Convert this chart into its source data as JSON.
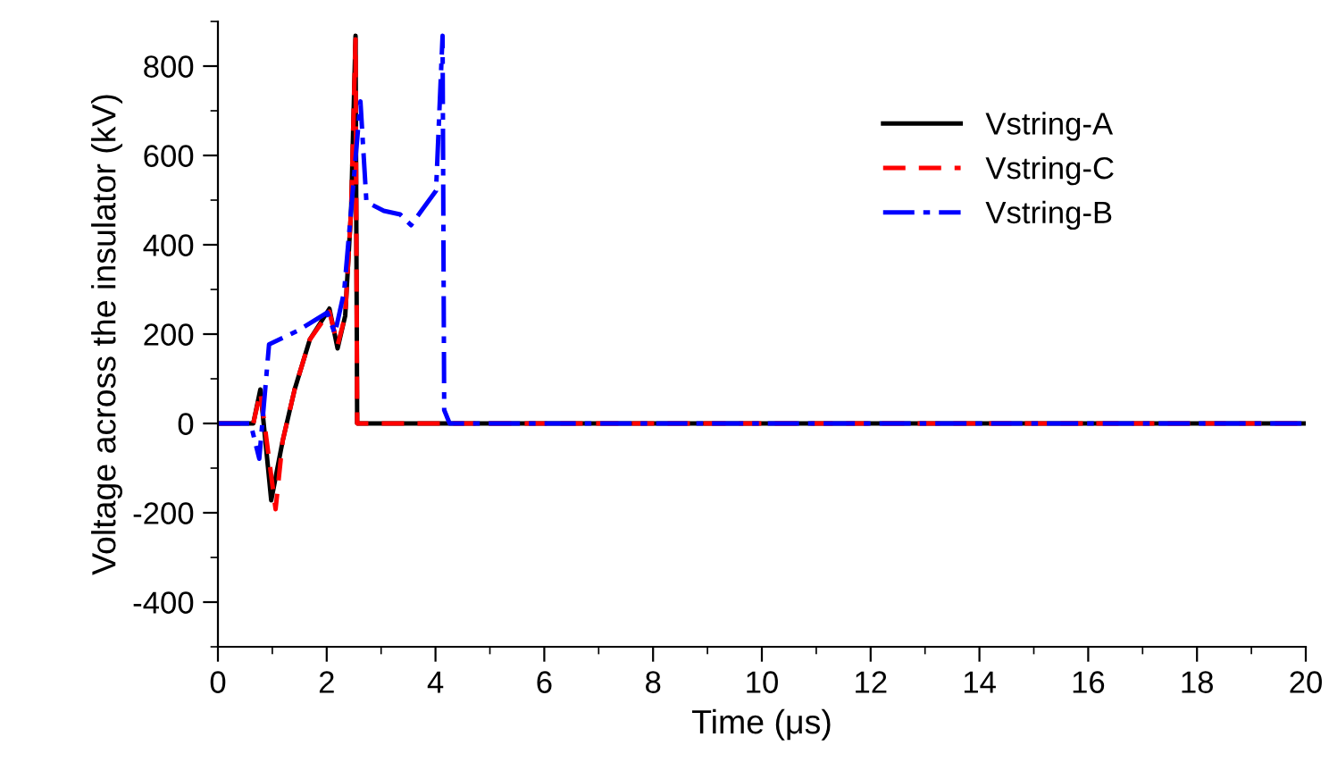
{
  "chart_data": {
    "type": "line",
    "xlabel": "Time (μs)",
    "ylabel": "Voltage across the insulator (kV)",
    "xlim": [
      0,
      20
    ],
    "xticks": [
      0,
      2,
      4,
      6,
      8,
      10,
      12,
      14,
      16,
      18,
      20
    ],
    "ylim": [
      -500,
      900
    ],
    "yticks": [
      -400,
      -200,
      0,
      200,
      400,
      600,
      800
    ],
    "grid": false,
    "legend": "top right",
    "marker": "none",
    "series": [
      {
        "name": "Vstring-A",
        "color": "#000000",
        "line_style": "solid",
        "x": [
          0,
          0.65,
          0.78,
          0.98,
          1.19,
          1.41,
          1.69,
          2.05,
          2.2,
          2.34,
          2.45,
          2.53,
          2.56,
          20
        ],
        "values": [
          0,
          0,
          76,
          -172,
          -39,
          76,
          188,
          257,
          168,
          241,
          481,
          868,
          0,
          0
        ]
      },
      {
        "name": "Vstring-C",
        "color": "#ff0000",
        "line_style": "dashed",
        "x": [
          0,
          0.65,
          0.78,
          1.06,
          1.19,
          1.41,
          1.69,
          2.05,
          2.2,
          2.34,
          2.45,
          2.53,
          2.56,
          20
        ],
        "values": [
          0,
          0,
          70,
          -192,
          -39,
          76,
          188,
          250,
          175,
          241,
          481,
          860,
          0,
          0
        ]
      },
      {
        "name": "Vstring-B",
        "color": "#0000ff",
        "line_style": "dashdot",
        "x": [
          0,
          0.6,
          0.76,
          0.94,
          1.47,
          2.01,
          2.15,
          2.32,
          2.62,
          2.73,
          3.05,
          3.35,
          3.55,
          3.77,
          4.01,
          4.13,
          4.16,
          4.26,
          20
        ],
        "values": [
          0,
          0,
          -79,
          177,
          208,
          248,
          201,
          295,
          721,
          496,
          476,
          468,
          444,
          481,
          521,
          868,
          30,
          0,
          0
        ]
      }
    ]
  }
}
